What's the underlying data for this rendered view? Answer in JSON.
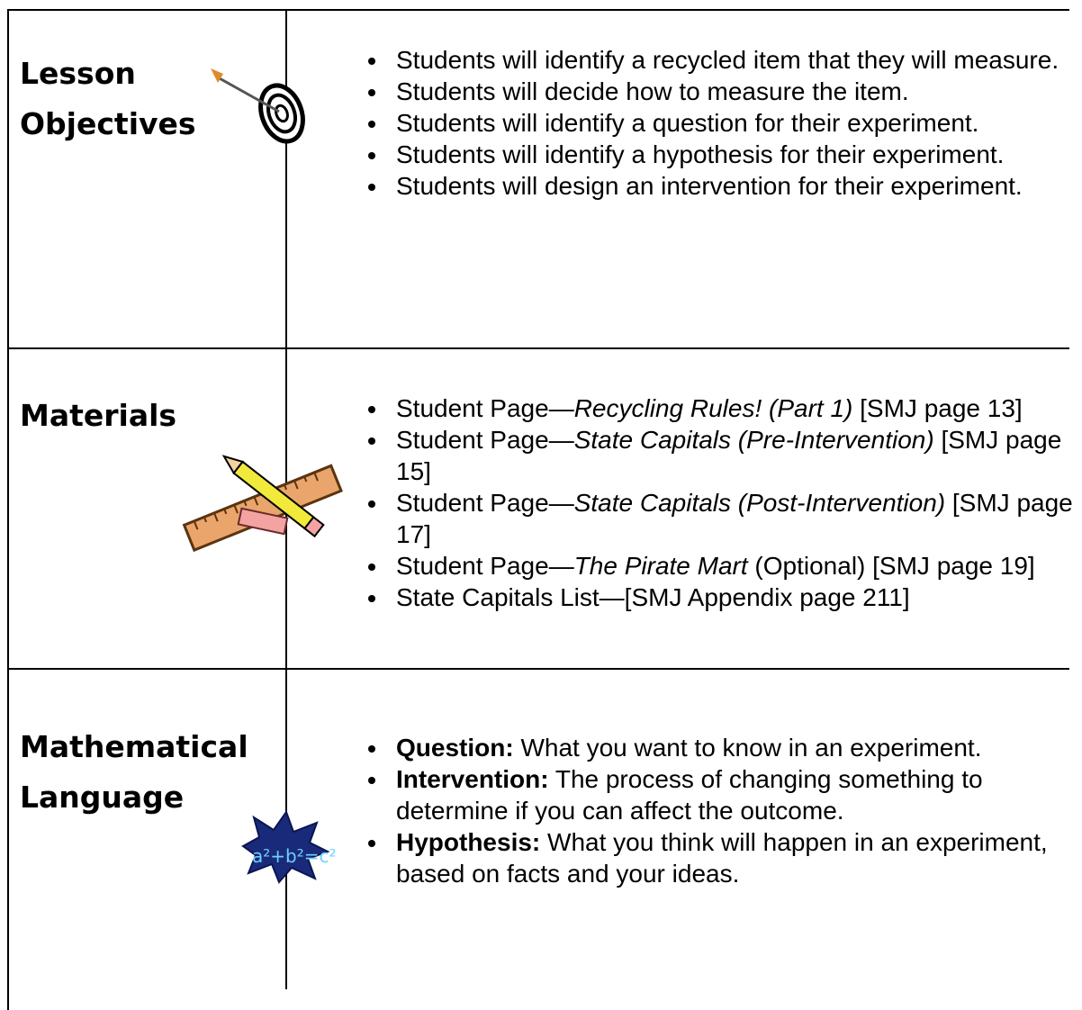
{
  "rows": [
    {
      "heading": "Lesson Objectives",
      "items": [
        [
          {
            "text": "Students will identify a recycled item that they will measure."
          }
        ],
        [
          {
            "text": "Students will decide how to measure the item."
          }
        ],
        [
          {
            "text": "Students will identify a question for their experiment."
          }
        ],
        [
          {
            "text": "Students will identify a hypothesis for their experiment."
          }
        ],
        [
          {
            "text": "Students will design an intervention for their experiment."
          }
        ]
      ]
    },
    {
      "heading": "Materials",
      "items": [
        [
          {
            "text": "Student Page—"
          },
          {
            "italic": "Recycling Rules! (Part 1)"
          },
          {
            "text": " [SMJ page 13]"
          }
        ],
        [
          {
            "text": "Student Page—"
          },
          {
            "italic": "State Capitals (Pre-Intervention)"
          },
          {
            "text": " [SMJ page 15]"
          }
        ],
        [
          {
            "text": "Student Page—"
          },
          {
            "italic": "State Capitals (Post-Intervention)"
          },
          {
            "text": " [SMJ page 17]"
          }
        ],
        [
          {
            "text": "Student Page—"
          },
          {
            "italic": "The Pirate Mart"
          },
          {
            "text": " (Optional) [SMJ page 19]"
          }
        ],
        [
          {
            "text": "State Capitals List—[SMJ Appendix page 211]"
          }
        ]
      ]
    },
    {
      "heading": "Mathematical Language",
      "items": [
        [
          {
            "bold": "Question:"
          },
          {
            "text": " What you want to know in an experiment."
          }
        ],
        [
          {
            "bold": "Intervention:"
          },
          {
            "text": " The process of changing something to determine if you can affect the outcome."
          }
        ],
        [
          {
            "bold": "Hypothesis:"
          },
          {
            "text": " What you think will happen in an experiment, based on facts and your ideas."
          }
        ]
      ]
    }
  ]
}
